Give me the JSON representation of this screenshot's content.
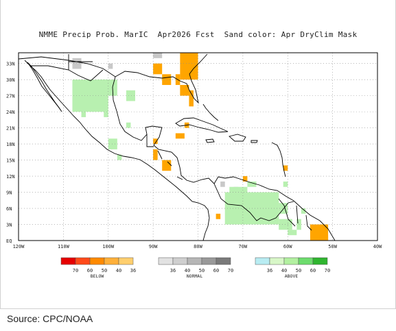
{
  "title": "NMME Precip Prob. MarIC  Apr2026 Fcst  Sand color: Apr DryClim Mask",
  "lat_labels": [
    "33N",
    "30N",
    "27N",
    "24N",
    "21N",
    "18N",
    "15N",
    "12N",
    "9N",
    "6N",
    "3N",
    "EQ"
  ],
  "lon_labels": [
    "120W",
    "110W",
    "100W",
    "90W",
    "80W",
    "70W",
    "60W",
    "50W",
    "40W"
  ],
  "legend": {
    "below": {
      "label": "BELOW",
      "colors": [
        "#e60000",
        "#ff4a1a",
        "#ff8a00",
        "#ffb03a",
        "#ffcf6e"
      ],
      "ticks": [
        "70",
        "60",
        "50",
        "40",
        "36"
      ]
    },
    "normal": {
      "label": "NORMAL",
      "colors": [
        "#e2e2e2",
        "#cfcfcf",
        "#b6b6b6",
        "#999999",
        "#7a7a7a"
      ],
      "ticks": [
        "36",
        "40",
        "50",
        "60",
        "70"
      ]
    },
    "above": {
      "label": "ABOVE",
      "colors": [
        "#b8ecf2",
        "#d8f7c8",
        "#b2f0a0",
        "#6ddc6d",
        "#2fb52f"
      ],
      "ticks": [
        "36",
        "40",
        "50",
        "60",
        "70"
      ]
    }
  },
  "colors": {
    "dry_mask": "#ecd9a8",
    "below_cell": "#ffa500",
    "normal_cell": "#c8c8c8",
    "above_cell": "#b8f0b0",
    "coast": "#000000",
    "grid": "#8a8a8a"
  },
  "source": "Source: CPC/NOAA"
}
